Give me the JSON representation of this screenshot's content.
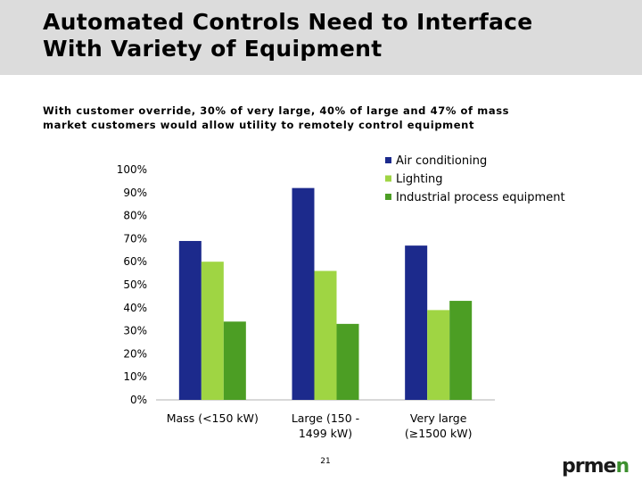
{
  "title": {
    "line1": "Automated Controls Need to Interface",
    "line2": "With Variety of Equipment"
  },
  "subtitle": {
    "line1": "With customer override, 30% of very large, 40% of large and 47% of mass",
    "line2": "market customers would allow utility to remotely control equipment"
  },
  "chart_data": {
    "type": "bar",
    "categories": [
      [
        "Mass (<150 kW)"
      ],
      [
        "Large (150 -",
        "1499 kW)"
      ],
      [
        "Very large",
        "(≥1500 kW)"
      ]
    ],
    "series": [
      {
        "name": "Air conditioning",
        "color": "#1c2a8c",
        "values": [
          69,
          92,
          67
        ]
      },
      {
        "name": "Lighting",
        "color": "#9fd543",
        "values": [
          60,
          56,
          39
        ]
      },
      {
        "name": "Industrial process equipment",
        "color": "#4c9e24",
        "values": [
          34,
          33,
          43
        ]
      }
    ],
    "ylim": [
      0,
      100
    ],
    "yticks": [
      "0%",
      "10%",
      "20%",
      "30%",
      "40%",
      "50%",
      "60%",
      "70%",
      "80%",
      "90%",
      "100%"
    ],
    "grid": false,
    "legend": "top-right"
  },
  "page_number": "21",
  "logo": {
    "text_main": "prme",
    "text_end": "n",
    "color_main": "#1a1a1a",
    "color_end": "#3c8f2e"
  }
}
